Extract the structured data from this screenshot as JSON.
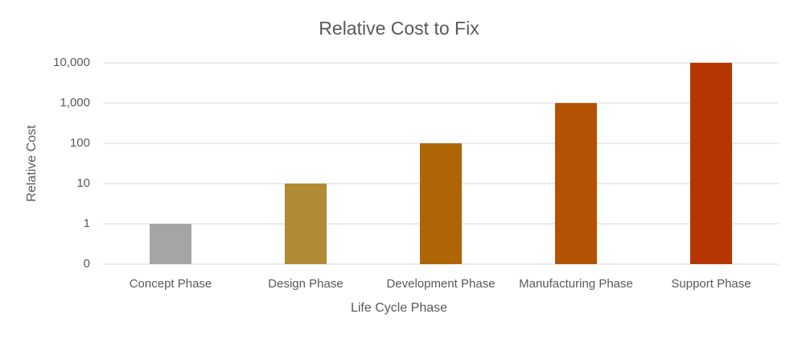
{
  "chart_data": {
    "type": "bar",
    "title": "Relative Cost to Fix",
    "x_label": "Life Cycle Phase",
    "y_label": "Relative Cost",
    "categories": [
      "Concept Phase",
      "Design Phase",
      "Development Phase",
      "Manufacturing Phase",
      "Support Phase"
    ],
    "values": [
      1,
      10,
      100,
      1000,
      10000
    ],
    "colors": [
      "#a5a5a5",
      "#b08a35",
      "#ad6505",
      "#b45203",
      "#b53602"
    ],
    "log_scale": true,
    "ylim": [
      0.1,
      10000
    ],
    "yticks": [
      {
        "value": 0.1,
        "label": "0"
      },
      1,
      10,
      100,
      {
        "value": 1000,
        "label": "1,000"
      },
      {
        "value": 10000,
        "label": "10,000"
      }
    ],
    "grid": true
  }
}
